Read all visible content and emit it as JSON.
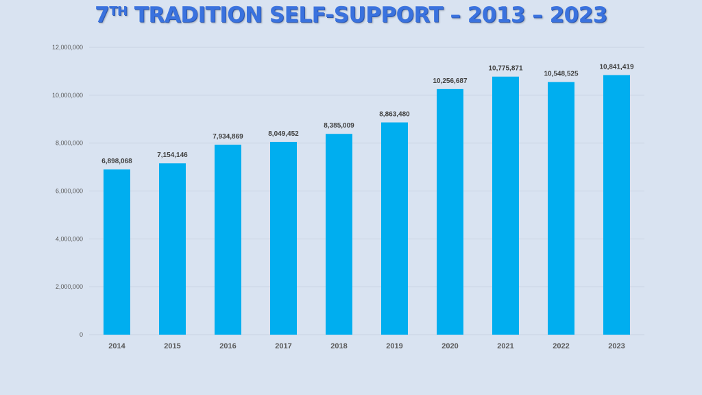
{
  "title": {
    "prefix": "7",
    "superscript": "TH",
    "main": " TRADITION SELF-SUPPORT – 2013 – 2023"
  },
  "colors": {
    "bar": "#00aeef",
    "title": "#3a72de",
    "background": "#d9e3f1"
  },
  "chart_data": {
    "type": "bar",
    "title": "7TH TRADITION SELF-SUPPORT – 2013 – 2023",
    "categories": [
      "2014",
      "2015",
      "2016",
      "2017",
      "2018",
      "2019",
      "2020",
      "2021",
      "2022",
      "2023"
    ],
    "values": [
      6898068,
      7154146,
      7934869,
      8049452,
      8385009,
      8863480,
      10256687,
      10775871,
      10548525,
      10841419
    ],
    "data_labels": [
      "6,898,068",
      "7,154,146",
      "7,934,869",
      "8,049,452",
      "8,385,009",
      "8,863,480",
      "10,256,687",
      "10,775,871",
      "10,548,525",
      "10,841,419"
    ],
    "ylim": [
      0,
      12000000
    ],
    "yticks": [
      0,
      2000000,
      4000000,
      6000000,
      8000000,
      10000000,
      12000000
    ],
    "ytick_labels": [
      "0",
      "2,000,000",
      "4,000,000",
      "6,000,000",
      "8,000,000",
      "10,000,000",
      "12,000,000"
    ],
    "grid": true,
    "legend": "none"
  }
}
